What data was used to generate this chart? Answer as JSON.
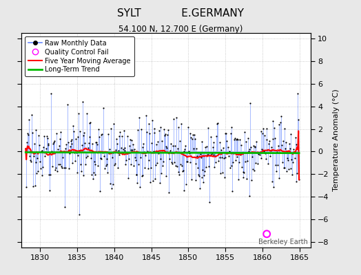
{
  "title": "SYLT            E.GERMANY",
  "subtitle": "54.100 N, 12.700 E (Germany)",
  "ylabel": "Temperature Anomaly (°C)",
  "xlim": [
    1827.5,
    1866.5
  ],
  "ylim": [
    -8.5,
    10.5
  ],
  "yticks": [
    -8,
    -6,
    -4,
    -2,
    0,
    2,
    4,
    6,
    8,
    10
  ],
  "xticks": [
    1830,
    1835,
    1840,
    1845,
    1850,
    1855,
    1860,
    1865
  ],
  "background_color": "#e8e8e8",
  "plot_background": "#ffffff",
  "raw_line_color": "#6688ff",
  "raw_dot_color": "#000000",
  "ma_color": "#ff0000",
  "trend_color": "#00bb00",
  "qc_fail_x": 1860.6,
  "qc_fail_y": -7.3,
  "watermark": "Berkeley Earth",
  "seed": 17,
  "n_years": 37,
  "start_year": 1828
}
